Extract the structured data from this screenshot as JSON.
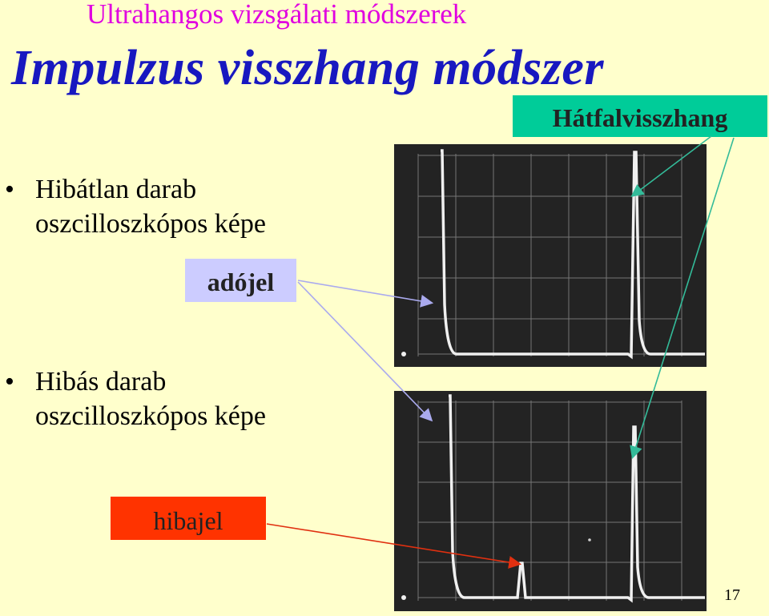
{
  "slide": {
    "supertitle": "Ultrahangos vizsgálati módszerek",
    "title": "Impulzus visszhang módszer",
    "bullets": [
      {
        "line1": "Hibátlan darab",
        "line2": "oszcilloszkópos képe"
      },
      {
        "line1": "Hibás darab",
        "line2": "oszcilloszkópos képe"
      }
    ],
    "labels": {
      "backwall_echo": "Hátfalvisszhang",
      "transmit_signal": "adójel",
      "defect_signal": "hibajel"
    },
    "page_number": "17"
  },
  "colors": {
    "background": "#ffffcc",
    "supertitle": "#e000e0",
    "title": "#1818c0",
    "backwall_box": "#00cc99",
    "transmit_box": "#ccccff",
    "defect_box": "#ff3300",
    "scope_bg": "#232323",
    "trace": "#f0f0f0"
  },
  "oscilloscopes": [
    {
      "name": "flawless-part-scope",
      "peaks": [
        "transmit-pulse",
        "backwall-echo"
      ]
    },
    {
      "name": "defective-part-scope",
      "peaks": [
        "transmit-pulse",
        "defect-echo",
        "backwall-echo"
      ]
    }
  ]
}
